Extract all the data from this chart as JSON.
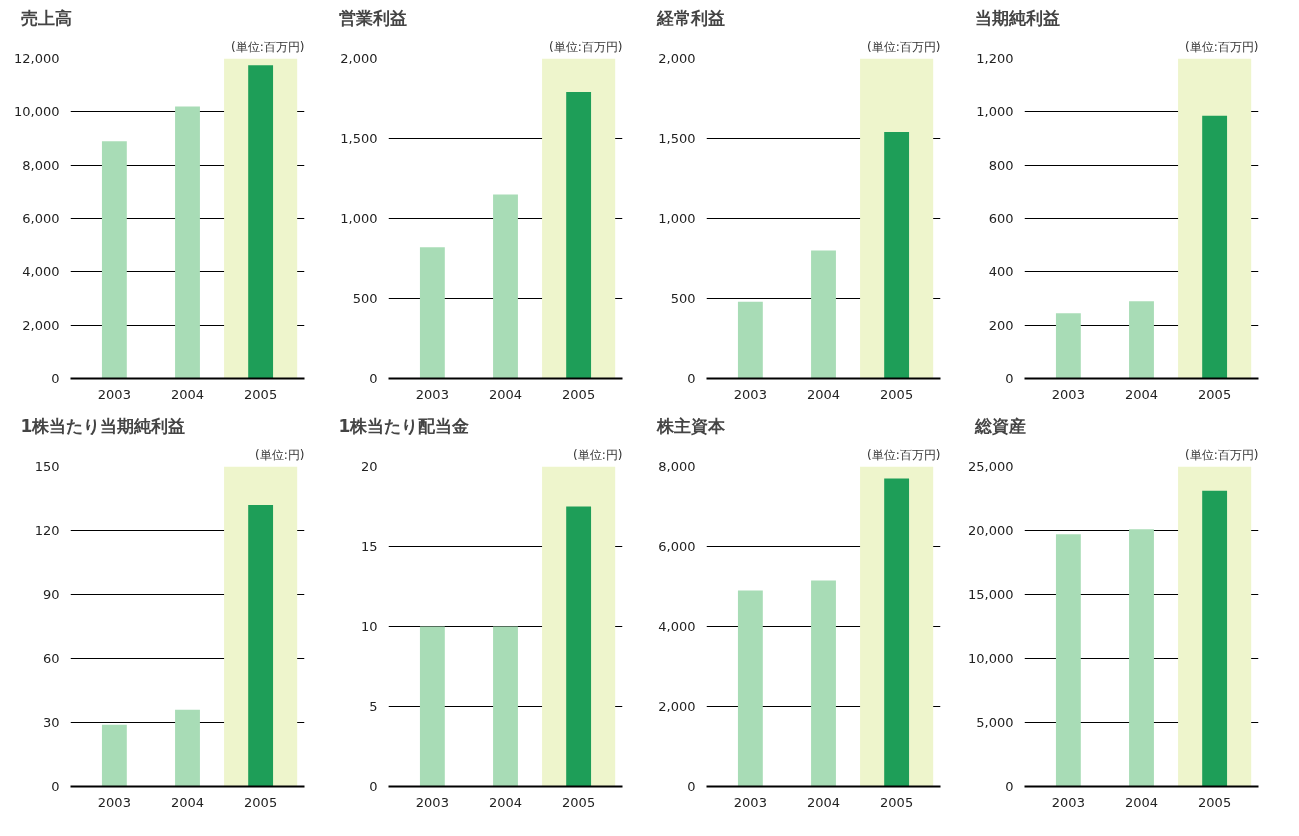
{
  "chart_data": [
    {
      "type": "bar",
      "title": "売上高",
      "subtitle": "(単位:百万円)",
      "categories": [
        "2003",
        "2004",
        "2005"
      ],
      "values": [
        8900,
        10200,
        11750
      ],
      "colors": [
        "#a8dcb6",
        "#a8dcb6",
        "#1e9e58"
      ],
      "ylim": [
        0,
        12000
      ],
      "yticks": [
        0,
        {
          "value": 2000,
          "label": "2,000"
        },
        {
          "value": 4000,
          "label": "4,000"
        },
        {
          "value": 6000,
          "label": "6,000"
        },
        {
          "value": 8000,
          "label": "8,000"
        },
        {
          "value": 10000,
          "label": "10,000"
        },
        {
          "value": 12000,
          "label": "12,000"
        }
      ],
      "grid": "y",
      "bands": [
        {
          "axis": "x",
          "from": "2005",
          "to": "2005",
          "color": "#eef5cc"
        }
      ]
    },
    {
      "type": "bar",
      "title": "営業利益",
      "subtitle": "(単位:百万円)",
      "categories": [
        "2003",
        "2004",
        "2005"
      ],
      "values": [
        820,
        1150,
        1790
      ],
      "colors": [
        "#a8dcb6",
        "#a8dcb6",
        "#1e9e58"
      ],
      "ylim": [
        0,
        2000
      ],
      "yticks": [
        0,
        500,
        {
          "value": 1000,
          "label": "1,000"
        },
        {
          "value": 1500,
          "label": "1,500"
        },
        {
          "value": 2000,
          "label": "2,000"
        }
      ],
      "grid": "y",
      "bands": [
        {
          "axis": "x",
          "from": "2005",
          "to": "2005",
          "color": "#eef5cc"
        }
      ]
    },
    {
      "type": "bar",
      "title": "経常利益",
      "subtitle": "(単位:百万円)",
      "categories": [
        "2003",
        "2004",
        "2005"
      ],
      "values": [
        480,
        800,
        1540
      ],
      "colors": [
        "#a8dcb6",
        "#a8dcb6",
        "#1e9e58"
      ],
      "ylim": [
        0,
        2000
      ],
      "yticks": [
        0,
        500,
        {
          "value": 1000,
          "label": "1,000"
        },
        {
          "value": 1500,
          "label": "1,500"
        },
        {
          "value": 2000,
          "label": "2,000"
        }
      ],
      "grid": "y",
      "bands": [
        {
          "axis": "x",
          "from": "2005",
          "to": "2005",
          "color": "#eef5cc"
        }
      ]
    },
    {
      "type": "bar",
      "title": "当期純利益",
      "subtitle": "(単位:百万円)",
      "categories": [
        "2003",
        "2004",
        "2005"
      ],
      "values": [
        245,
        290,
        985
      ],
      "colors": [
        "#a8dcb6",
        "#a8dcb6",
        "#1e9e58"
      ],
      "ylim": [
        0,
        1200
      ],
      "yticks": [
        0,
        200,
        400,
        600,
        800,
        {
          "value": 1000,
          "label": "1,000"
        },
        {
          "value": 1200,
          "label": "1,200"
        }
      ],
      "grid": "y",
      "bands": [
        {
          "axis": "x",
          "from": "2005",
          "to": "2005",
          "color": "#eef5cc"
        }
      ]
    },
    {
      "type": "bar",
      "title": "1株当たり当期純利益",
      "subtitle": "(単位:円)",
      "categories": [
        "2003",
        "2004",
        "2005"
      ],
      "values": [
        29,
        36,
        132
      ],
      "colors": [
        "#a8dcb6",
        "#a8dcb6",
        "#1e9e58"
      ],
      "ylim": [
        0,
        150
      ],
      "yticks": [
        0,
        30,
        60,
        90,
        120,
        150
      ],
      "grid": "y",
      "bands": [
        {
          "axis": "x",
          "from": "2005",
          "to": "2005",
          "color": "#eef5cc"
        }
      ]
    },
    {
      "type": "bar",
      "title": "1株当たり配当金",
      "subtitle": "(単位:円)",
      "categories": [
        "2003",
        "2004",
        "2005"
      ],
      "values": [
        10,
        10,
        17.5
      ],
      "colors": [
        "#a8dcb6",
        "#a8dcb6",
        "#1e9e58"
      ],
      "ylim": [
        0,
        20
      ],
      "yticks": [
        0,
        5,
        10,
        15,
        20
      ],
      "grid": "y",
      "bands": [
        {
          "axis": "x",
          "from": "2005",
          "to": "2005",
          "color": "#eef5cc"
        }
      ]
    },
    {
      "type": "bar",
      "title": "株主資本",
      "subtitle": "(単位:百万円)",
      "categories": [
        "2003",
        "2004",
        "2005"
      ],
      "values": [
        4900,
        5150,
        7700
      ],
      "colors": [
        "#a8dcb6",
        "#a8dcb6",
        "#1e9e58"
      ],
      "ylim": [
        0,
        8000
      ],
      "yticks": [
        0,
        {
          "value": 2000,
          "label": "2,000"
        },
        {
          "value": 4000,
          "label": "4,000"
        },
        {
          "value": 6000,
          "label": "6,000"
        },
        {
          "value": 8000,
          "label": "8,000"
        }
      ],
      "grid": "y",
      "bands": [
        {
          "axis": "x",
          "from": "2005",
          "to": "2005",
          "color": "#eef5cc"
        }
      ]
    },
    {
      "type": "bar",
      "title": "総資産",
      "subtitle": "(単位:百万円)",
      "categories": [
        "2003",
        "2004",
        "2005"
      ],
      "values": [
        19700,
        20100,
        23100
      ],
      "colors": [
        "#a8dcb6",
        "#a8dcb6",
        "#1e9e58"
      ],
      "ylim": [
        0,
        25000
      ],
      "yticks": [
        0,
        {
          "value": 5000,
          "label": "5,000"
        },
        {
          "value": 10000,
          "label": "10,000"
        },
        {
          "value": 15000,
          "label": "15,000"
        },
        {
          "value": 20000,
          "label": "20,000"
        },
        {
          "value": 25000,
          "label": "25,000"
        }
      ],
      "grid": "y",
      "bands": [
        {
          "axis": "x",
          "from": "2005",
          "to": "2005",
          "color": "#eef5cc"
        }
      ]
    }
  ]
}
